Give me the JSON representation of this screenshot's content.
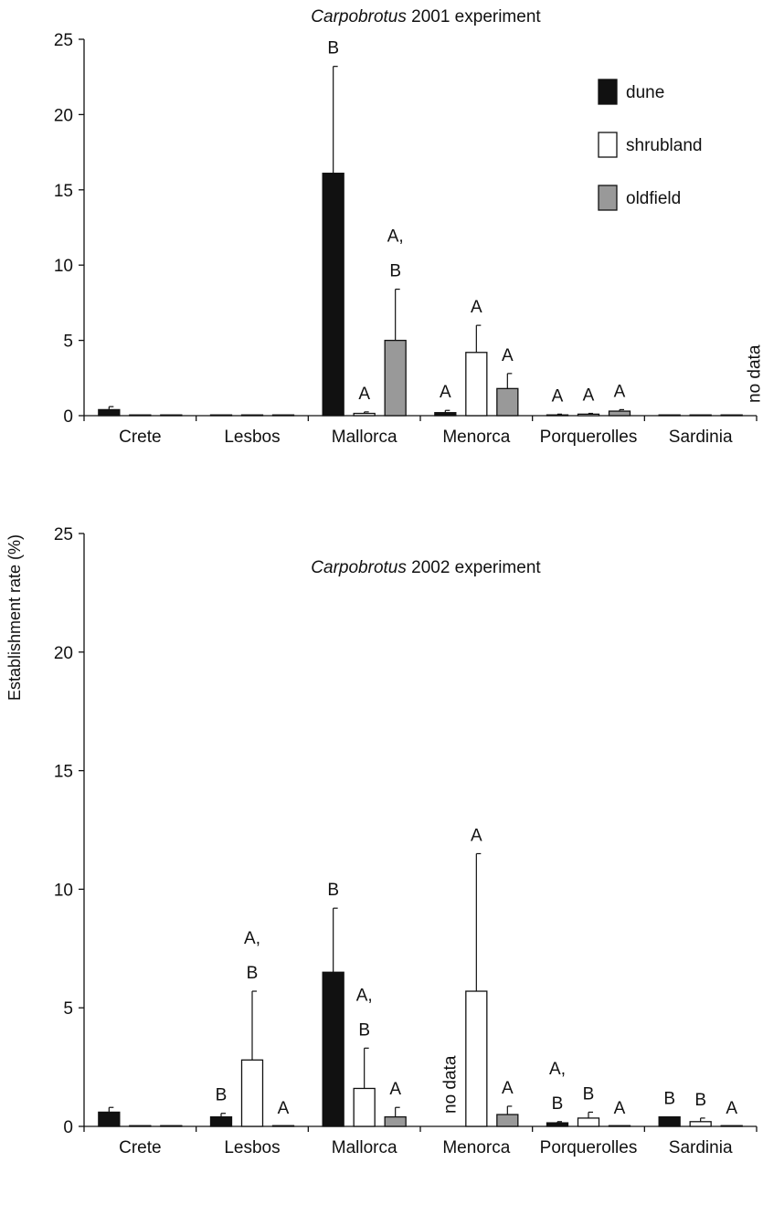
{
  "y_axis_label": "Establishment rate (%)",
  "legend": [
    {
      "name": "dune",
      "color": "#111111"
    },
    {
      "name": "shrubland",
      "color": "#ffffff"
    },
    {
      "name": "oldfield",
      "color": "#999999"
    }
  ],
  "chart_data": [
    {
      "type": "bar",
      "title_italic": "Carpobrotus",
      "title_rest": " 2001 experiment",
      "ylabel": "Establishment rate (%)",
      "ylim": [
        0,
        25
      ],
      "yticks": [
        0,
        5,
        10,
        15,
        20,
        25
      ],
      "categories": [
        "Crete",
        "Lesbos",
        "Mallorca",
        "Menorca",
        "Porquerolles",
        "Sardinia"
      ],
      "series": [
        {
          "name": "dune",
          "color": "#111111",
          "values": [
            0.4,
            0,
            16.1,
            0.2,
            0.05,
            0
          ],
          "errors": [
            0.2,
            0,
            7.1,
            0.15,
            0.05,
            0
          ],
          "sig": [
            "",
            "",
            "B",
            "A",
            "A",
            ""
          ]
        },
        {
          "name": "shrubland",
          "color": "#ffffff",
          "values": [
            0,
            0,
            0.15,
            4.2,
            0.1,
            0
          ],
          "errors": [
            0,
            0,
            0.1,
            1.8,
            0.05,
            0
          ],
          "sig": [
            "",
            "",
            "A",
            "A",
            "A",
            ""
          ]
        },
        {
          "name": "oldfield",
          "color": "#999999",
          "values": [
            0,
            0,
            5.0,
            1.8,
            0.3,
            0
          ],
          "errors": [
            0,
            0,
            3.4,
            1.0,
            0.1,
            0
          ],
          "sig": [
            "",
            "",
            "A,|B",
            "A",
            "A",
            ""
          ]
        }
      ],
      "no_data": [
        {
          "category": "Sardinia",
          "text": "no data"
        }
      ]
    },
    {
      "type": "bar",
      "title_italic": "Carpobrotus",
      "title_rest": " 2002 experiment",
      "ylabel": "Establishment rate (%)",
      "ylim": [
        0,
        25
      ],
      "yticks": [
        0,
        5,
        10,
        15,
        20,
        25
      ],
      "categories": [
        "Crete",
        "Lesbos",
        "Mallorca",
        "Menorca",
        "Porquerolles",
        "Sardinia"
      ],
      "series": [
        {
          "name": "dune",
          "color": "#111111",
          "values": [
            0.6,
            0.4,
            6.5,
            null,
            0.15,
            0.4
          ],
          "errors": [
            0.2,
            0.15,
            2.7,
            0,
            0.05,
            0
          ],
          "sig": [
            "",
            "B",
            "B",
            "",
            "A,|B",
            "B"
          ]
        },
        {
          "name": "shrubland",
          "color": "#ffffff",
          "values": [
            0,
            2.8,
            1.6,
            5.7,
            0.35,
            0.2
          ],
          "errors": [
            0,
            2.9,
            1.7,
            5.8,
            0.25,
            0.15
          ],
          "sig": [
            "",
            "A,|B",
            "A,|B",
            "A",
            "B",
            "B"
          ]
        },
        {
          "name": "oldfield",
          "color": "#999999",
          "values": [
            0,
            0,
            0.4,
            0.5,
            0,
            0
          ],
          "errors": [
            0,
            0,
            0.4,
            0.35,
            0,
            0
          ],
          "sig": [
            "",
            "A",
            "A",
            "A",
            "A",
            "A"
          ]
        }
      ],
      "no_data": [
        {
          "category": "Menorca",
          "text": "no data"
        }
      ]
    }
  ]
}
